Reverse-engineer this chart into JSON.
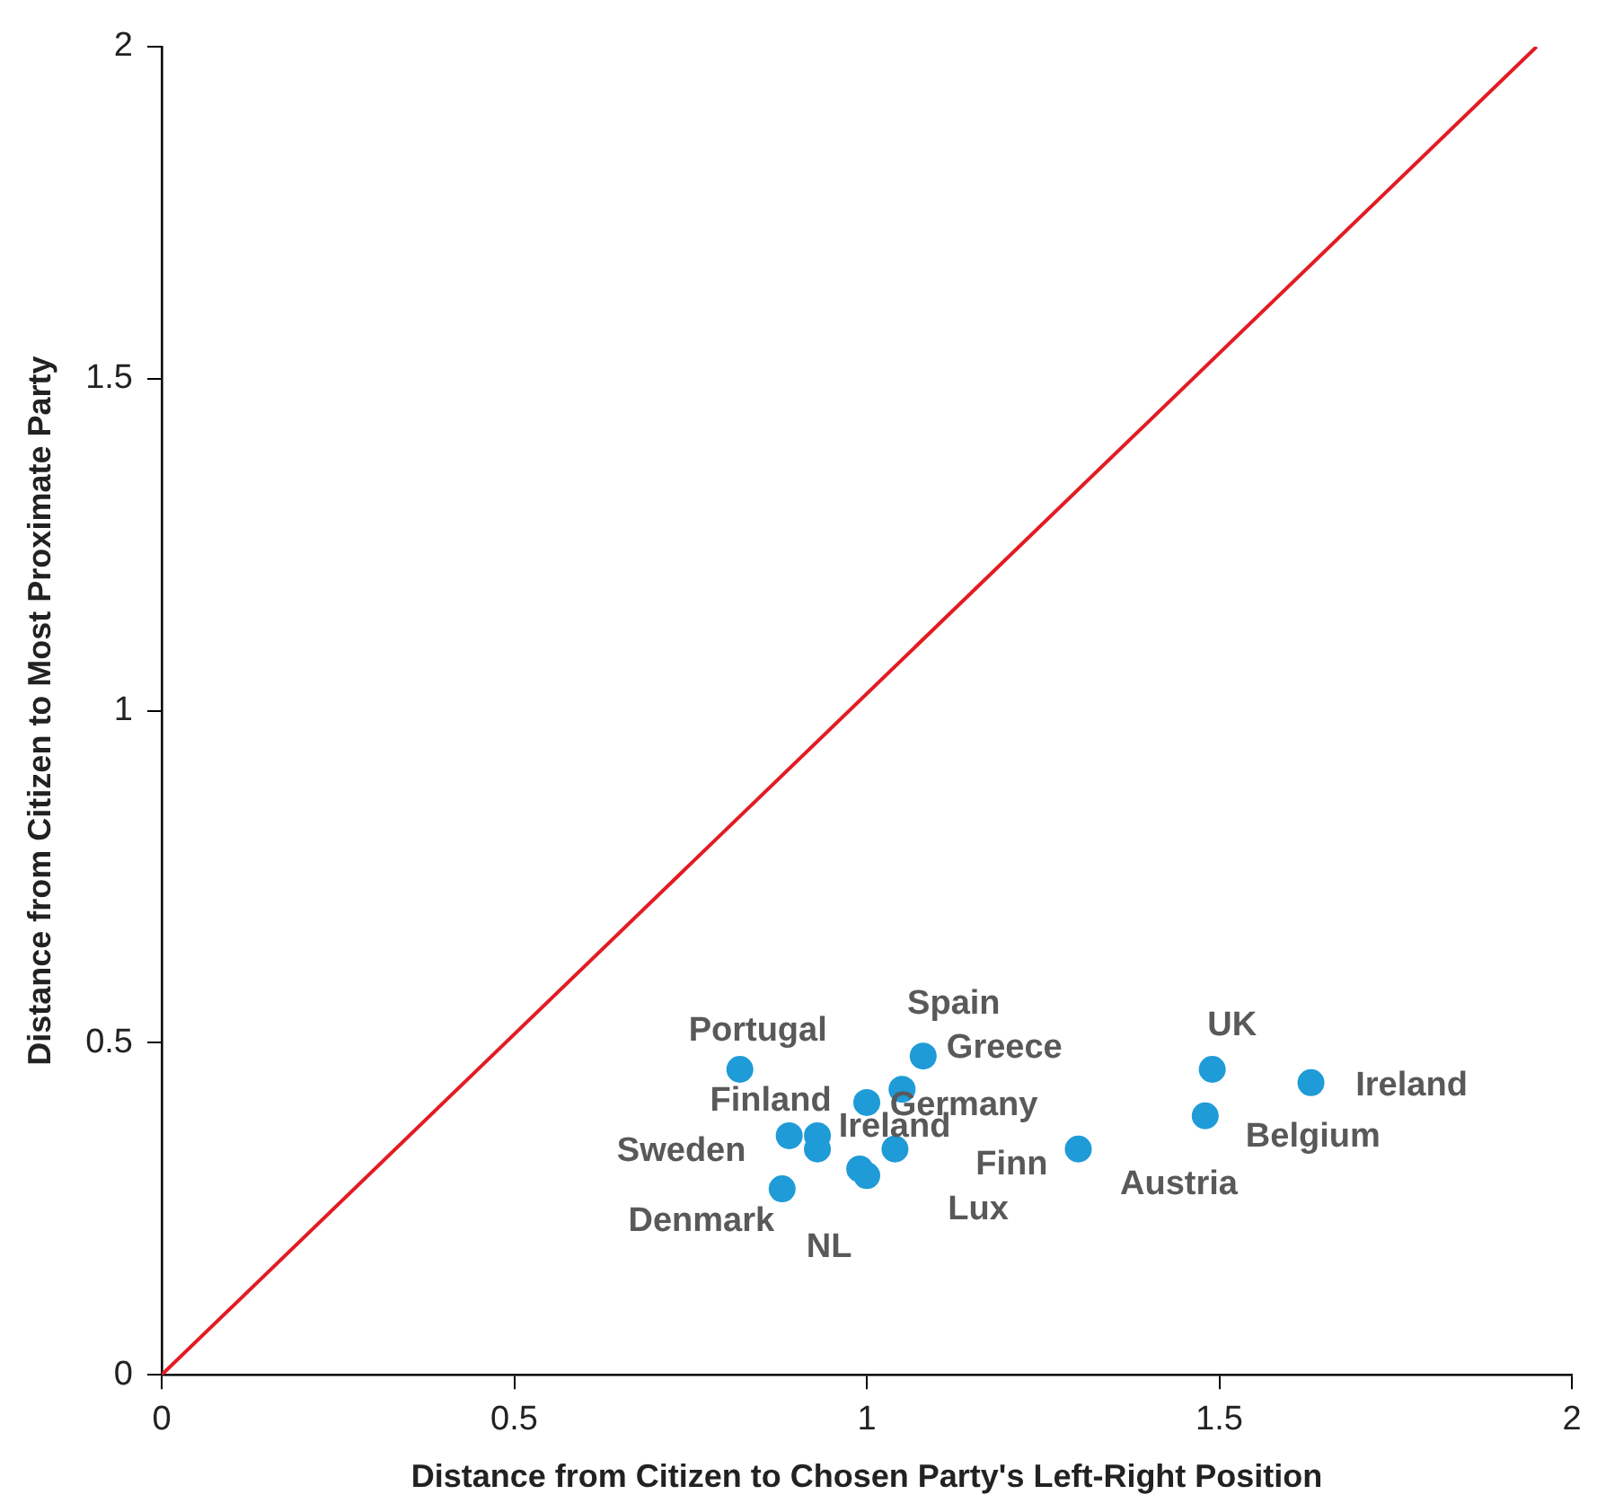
{
  "chart_data": {
    "type": "scatter",
    "xlabel": "Distance from Citizen to Chosen Party's Left-Right Position",
    "ylabel": "Distance from Citizen to Most Proximate Party",
    "xlim": [
      0,
      2
    ],
    "ylim": [
      0,
      2
    ],
    "xticks": [
      0,
      0.5,
      1,
      1.5,
      2
    ],
    "yticks": [
      0,
      0.5,
      1,
      1.5,
      2
    ],
    "grid": false,
    "legend": false,
    "marker": "circle",
    "series": [
      {
        "color": "#1f9bd7",
        "x": [
          0.82,
          1.08,
          1.05,
          1.0,
          0.89,
          0.93,
          0.93,
          1.04,
          0.99,
          1.0,
          0.88,
          1.3,
          1.49,
          1.63,
          1.48
        ],
        "values": [
          0.46,
          0.48,
          0.43,
          0.41,
          0.36,
          0.36,
          0.34,
          0.34,
          0.31,
          0.3,
          0.28,
          0.34,
          0.46,
          0.44,
          0.39
        ]
      },
      {
        "type": "line",
        "color": "#e31b23",
        "x": [
          0,
          1.95
        ],
        "values": [
          0,
          2
        ],
        "line_style": "solid",
        "marker": "none"
      }
    ],
    "annotations": [
      {
        "text": "Portugal",
        "x": 0.82,
        "y": 0.46
      },
      {
        "text": "Spain",
        "x": 1.08,
        "y": 0.48
      },
      {
        "text": "Greece",
        "x": 1.05,
        "y": 0.43
      },
      {
        "text": "Germany",
        "x": 1.0,
        "y": 0.41
      },
      {
        "text": "Sweden",
        "x": 0.89,
        "y": 0.36
      },
      {
        "text": "Finland",
        "x": 0.93,
        "y": 0.36
      },
      {
        "text": "Ireland",
        "x": 0.93,
        "y": 0.34
      },
      {
        "text": "Finn",
        "x": 1.04,
        "y": 0.34
      },
      {
        "text": "NL",
        "x": 0.99,
        "y": 0.31
      },
      {
        "text": "Lux",
        "x": 1.0,
        "y": 0.3
      },
      {
        "text": "Denmark",
        "x": 0.88,
        "y": 0.28
      },
      {
        "text": "Austria",
        "x": 1.3,
        "y": 0.34
      },
      {
        "text": "UK",
        "x": 1.49,
        "y": 0.46
      },
      {
        "text": "Ireland",
        "x": 1.63,
        "y": 0.44
      },
      {
        "text": "Belgium",
        "x": 1.48,
        "y": 0.39
      }
    ]
  }
}
